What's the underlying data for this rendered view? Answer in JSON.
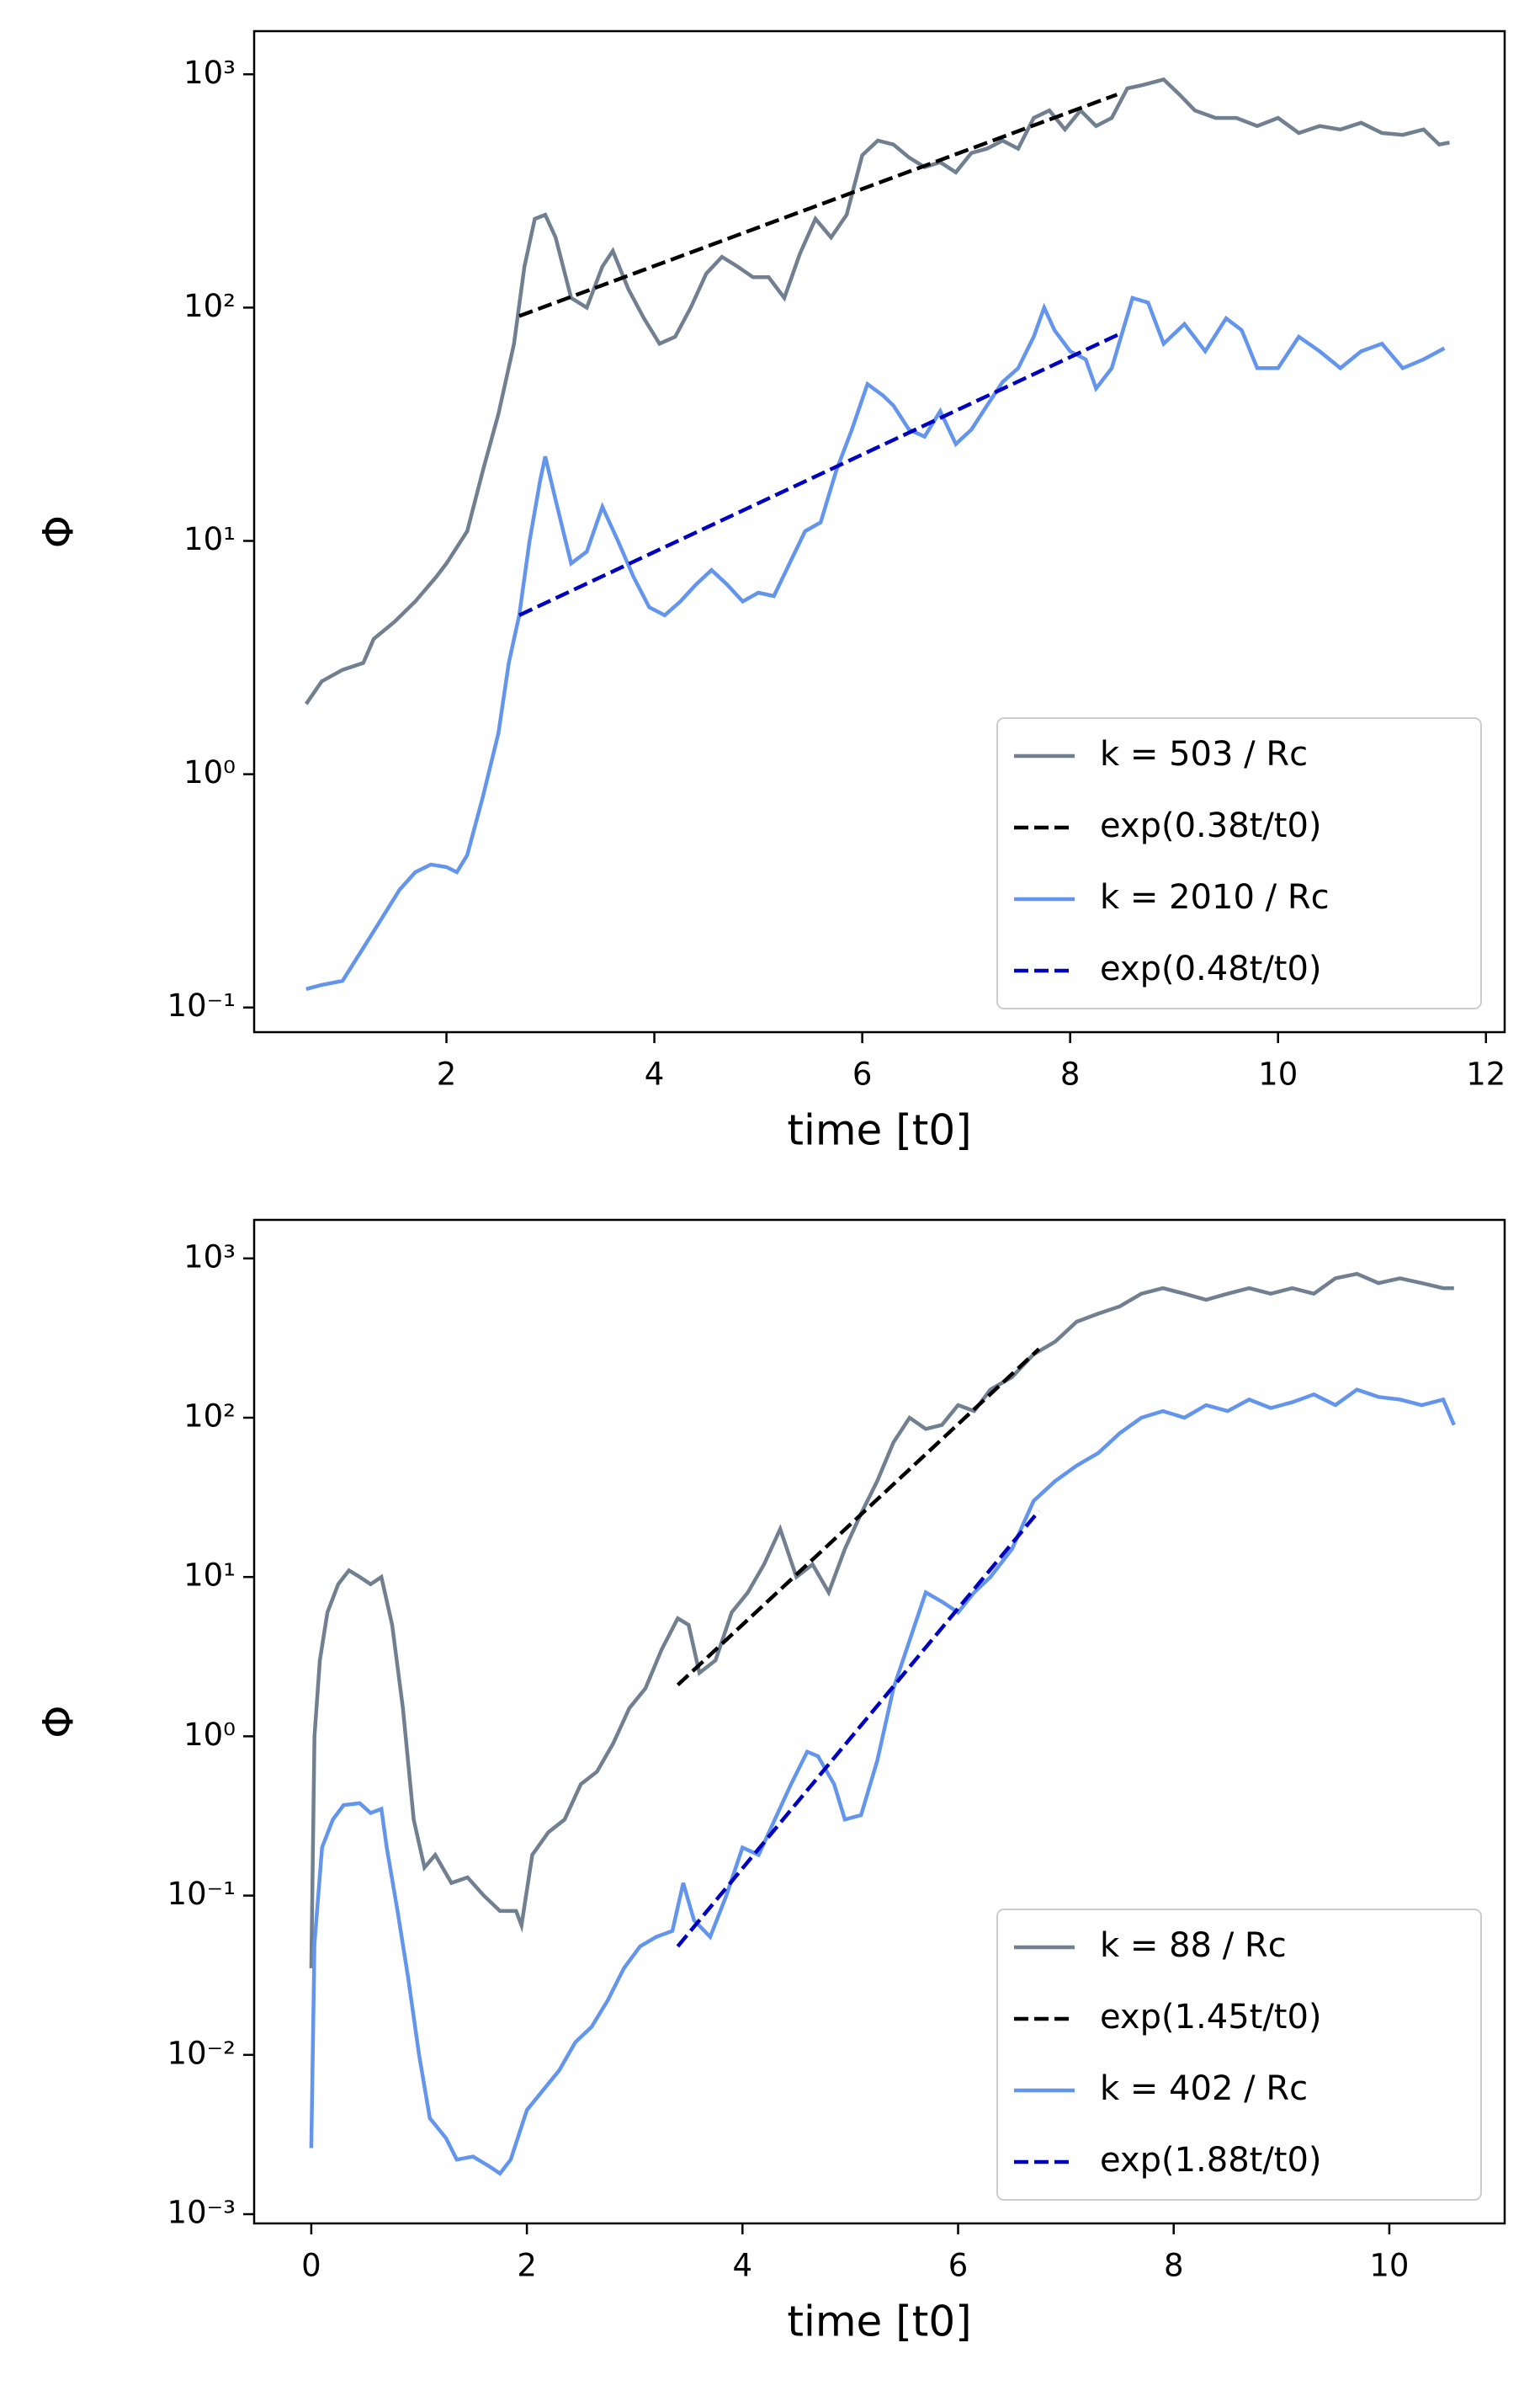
{
  "chart_data": [
    {
      "type": "line",
      "xlabel": "time [t0]",
      "ylabel": "Φ",
      "log_y": true,
      "legend": "lower right",
      "xlim": [
        0.15,
        12.18
      ],
      "ylim": [
        0.0784,
        1531
      ],
      "xticks": [
        2,
        4,
        6,
        8,
        10,
        12
      ],
      "yticks": [
        {
          "value": 0.1,
          "label": "10⁻¹"
        },
        {
          "value": 1,
          "label": "10⁰"
        },
        {
          "value": 10,
          "label": "10¹"
        },
        {
          "value": 100,
          "label": "10²"
        },
        {
          "value": 1000,
          "label": "10³"
        }
      ],
      "series": [
        {
          "name": "k = 503 / Rc",
          "color": "#708090",
          "linestyle": "solid",
          "x": [
            0.65,
            0.8,
            1.0,
            1.2,
            1.3,
            1.5,
            1.7,
            1.9,
            2.0,
            2.2,
            2.35,
            2.5,
            2.65,
            2.75,
            2.85,
            2.95,
            3.05,
            3.2,
            3.35,
            3.5,
            3.6,
            3.75,
            3.9,
            4.05,
            4.2,
            4.35,
            4.5,
            4.65,
            4.8,
            4.95,
            5.1,
            5.25,
            5.4,
            5.55,
            5.7,
            5.85,
            6.0,
            6.15,
            6.3,
            6.45,
            6.6,
            6.75,
            6.9,
            7.05,
            7.2,
            7.35,
            7.5,
            7.65,
            7.8,
            7.95,
            8.1,
            8.25,
            8.4,
            8.55,
            8.7,
            8.9,
            9.05,
            9.2,
            9.4,
            9.6,
            9.8,
            10.0,
            10.2,
            10.4,
            10.6,
            10.8,
            11.0,
            11.2,
            11.4,
            11.55,
            11.65
          ],
          "values": [
            2.0,
            2.5,
            2.8,
            3.0,
            3.8,
            4.5,
            5.5,
            7,
            8,
            11,
            20,
            35,
            70,
            150,
            240,
            250,
            200,
            110,
            100,
            150,
            175,
            120,
            90,
            70,
            75,
            100,
            140,
            165,
            150,
            135,
            135,
            110,
            170,
            240,
            200,
            250,
            450,
            520,
            500,
            440,
            400,
            420,
            380,
            460,
            480,
            520,
            480,
            650,
            700,
            580,
            700,
            600,
            650,
            870,
            900,
            950,
            820,
            700,
            650,
            650,
            600,
            650,
            560,
            600,
            580,
            620,
            560,
            550,
            580,
            500,
            510
          ]
        },
        {
          "name": "exp(0.38t/t0)",
          "color": "#000000",
          "linestyle": "dashed",
          "x": [
            2.7,
            8.45
          ],
          "values": [
            92,
            819
          ]
        },
        {
          "name": "k = 2010 / Rc",
          "color": "#6495ed",
          "linestyle": "solid",
          "x": [
            0.65,
            0.8,
            1.0,
            1.2,
            1.4,
            1.55,
            1.7,
            1.85,
            2.0,
            2.1,
            2.2,
            2.35,
            2.5,
            2.6,
            2.7,
            2.8,
            2.9,
            2.95,
            3.05,
            3.2,
            3.35,
            3.5,
            3.65,
            3.8,
            3.95,
            4.1,
            4.25,
            4.4,
            4.55,
            4.7,
            4.85,
            5.0,
            5.15,
            5.3,
            5.45,
            5.6,
            5.75,
            5.9,
            6.05,
            6.2,
            6.3,
            6.45,
            6.6,
            6.75,
            6.9,
            7.05,
            7.2,
            7.35,
            7.5,
            7.65,
            7.75,
            7.85,
            8.0,
            8.15,
            8.25,
            8.4,
            8.6,
            8.75,
            8.9,
            9.1,
            9.3,
            9.5,
            9.65,
            9.8,
            10.0,
            10.2,
            10.4,
            10.6,
            10.8,
            11.0,
            11.2,
            11.4,
            11.6
          ],
          "values": [
            0.12,
            0.125,
            0.13,
            0.18,
            0.25,
            0.32,
            0.38,
            0.41,
            0.4,
            0.38,
            0.45,
            0.8,
            1.5,
            3.0,
            4.8,
            10,
            18,
            23,
            15,
            8,
            9,
            14,
            10,
            7,
            5.2,
            4.8,
            5.5,
            6.5,
            7.5,
            6.5,
            5.5,
            6,
            5.8,
            8,
            11,
            12,
            20,
            30,
            47,
            42,
            38,
            30,
            28,
            36,
            26,
            30,
            38,
            48,
            55,
            75,
            100,
            80,
            65,
            60,
            45,
            55,
            110,
            105,
            70,
            85,
            65,
            90,
            80,
            55,
            55,
            75,
            65,
            55,
            65,
            70,
            55,
            60,
            67
          ]
        },
        {
          "name": "exp(0.48t/t0)",
          "color": "#0000c0",
          "linestyle": "dashed",
          "x": [
            2.7,
            8.5
          ],
          "values": [
            4.8,
            78
          ]
        }
      ]
    },
    {
      "type": "line",
      "xlabel": "time [t0]",
      "ylabel": "Φ",
      "log_y": true,
      "legend": "lower right",
      "xlim": [
        -0.53,
        11.07
      ],
      "ylim": [
        0.000875,
        1745
      ],
      "xticks": [
        0,
        2,
        4,
        6,
        8,
        10
      ],
      "yticks": [
        {
          "value": 0.001,
          "label": "10⁻³"
        },
        {
          "value": 0.01,
          "label": "10⁻²"
        },
        {
          "value": 0.1,
          "label": "10⁻¹"
        },
        {
          "value": 1,
          "label": "10⁰"
        },
        {
          "value": 10,
          "label": "10¹"
        },
        {
          "value": 100,
          "label": "10²"
        },
        {
          "value": 1000,
          "label": "10³"
        }
      ],
      "series": [
        {
          "name": "k = 88 / Rc",
          "color": "#708090",
          "linestyle": "solid",
          "x": [
            0.0,
            0.03,
            0.08,
            0.15,
            0.25,
            0.35,
            0.45,
            0.55,
            0.65,
            0.75,
            0.85,
            0.95,
            1.05,
            1.15,
            1.3,
            1.45,
            1.6,
            1.75,
            1.9,
            1.95,
            2.05,
            2.2,
            2.35,
            2.5,
            2.65,
            2.8,
            2.95,
            3.1,
            3.25,
            3.4,
            3.5,
            3.6,
            3.75,
            3.9,
            4.05,
            4.2,
            4.35,
            4.5,
            4.65,
            4.8,
            4.95,
            5.1,
            5.25,
            5.4,
            5.55,
            5.7,
            5.85,
            6.0,
            6.15,
            6.3,
            6.5,
            6.7,
            6.9,
            7.1,
            7.3,
            7.5,
            7.7,
            7.9,
            8.1,
            8.3,
            8.5,
            8.7,
            8.9,
            9.1,
            9.3,
            9.5,
            9.7,
            9.9,
            10.1,
            10.3,
            10.5,
            10.6
          ],
          "values": [
            0.035,
            1.0,
            3,
            6,
            9,
            11,
            10,
            9,
            10,
            5,
            1.5,
            0.3,
            0.15,
            0.18,
            0.12,
            0.13,
            0.1,
            0.08,
            0.08,
            0.065,
            0.18,
            0.25,
            0.3,
            0.5,
            0.6,
            0.9,
            1.5,
            2.0,
            3.5,
            5.5,
            5,
            2.5,
            3,
            6,
            8,
            12,
            20,
            10,
            12,
            8,
            15,
            25,
            40,
            70,
            100,
            85,
            90,
            120,
            110,
            150,
            180,
            250,
            300,
            400,
            450,
            500,
            600,
            650,
            600,
            550,
            600,
            650,
            600,
            650,
            600,
            750,
            800,
            700,
            750,
            700,
            650,
            650
          ]
        },
        {
          "name": "exp(1.45t/t0)",
          "color": "#000000",
          "linestyle": "dashed",
          "x": [
            3.4,
            6.75
          ],
          "values": [
            2.1,
            270
          ]
        },
        {
          "name": "k = 402 / Rc",
          "color": "#6495ed",
          "linestyle": "solid",
          "x": [
            0.0,
            0.03,
            0.1,
            0.2,
            0.3,
            0.45,
            0.55,
            0.65,
            0.7,
            0.8,
            0.9,
            1.0,
            1.1,
            1.25,
            1.35,
            1.5,
            1.65,
            1.75,
            1.85,
            2.0,
            2.15,
            2.3,
            2.45,
            2.6,
            2.75,
            2.9,
            3.05,
            3.2,
            3.35,
            3.45,
            3.55,
            3.7,
            3.85,
            4.0,
            4.15,
            4.3,
            4.45,
            4.6,
            4.7,
            4.85,
            4.95,
            5.1,
            5.25,
            5.4,
            5.55,
            5.7,
            5.85,
            6.0,
            6.15,
            6.3,
            6.5,
            6.7,
            6.9,
            7.1,
            7.3,
            7.5,
            7.7,
            7.9,
            8.1,
            8.3,
            8.5,
            8.7,
            8.9,
            9.1,
            9.3,
            9.5,
            9.7,
            9.9,
            10.1,
            10.3,
            10.5,
            10.6
          ],
          "values": [
            0.0026,
            0.05,
            0.2,
            0.3,
            0.37,
            0.38,
            0.33,
            0.35,
            0.2,
            0.08,
            0.03,
            0.01,
            0.004,
            0.003,
            0.0022,
            0.0023,
            0.002,
            0.0018,
            0.0022,
            0.0045,
            0.006,
            0.008,
            0.012,
            0.015,
            0.022,
            0.035,
            0.048,
            0.055,
            0.06,
            0.12,
            0.07,
            0.055,
            0.1,
            0.2,
            0.18,
            0.3,
            0.5,
            0.8,
            0.75,
            0.5,
            0.3,
            0.32,
            0.7,
            2.0,
            4,
            8,
            7,
            6,
            8,
            10,
            15,
            30,
            40,
            50,
            60,
            80,
            100,
            110,
            100,
            120,
            110,
            130,
            115,
            125,
            140,
            120,
            150,
            135,
            130,
            120,
            130,
            90
          ]
        },
        {
          "name": "exp(1.88t/t0)",
          "color": "#0000c0",
          "linestyle": "dashed",
          "x": [
            3.4,
            6.75
          ],
          "values": [
            0.048,
            26
          ]
        }
      ]
    }
  ]
}
